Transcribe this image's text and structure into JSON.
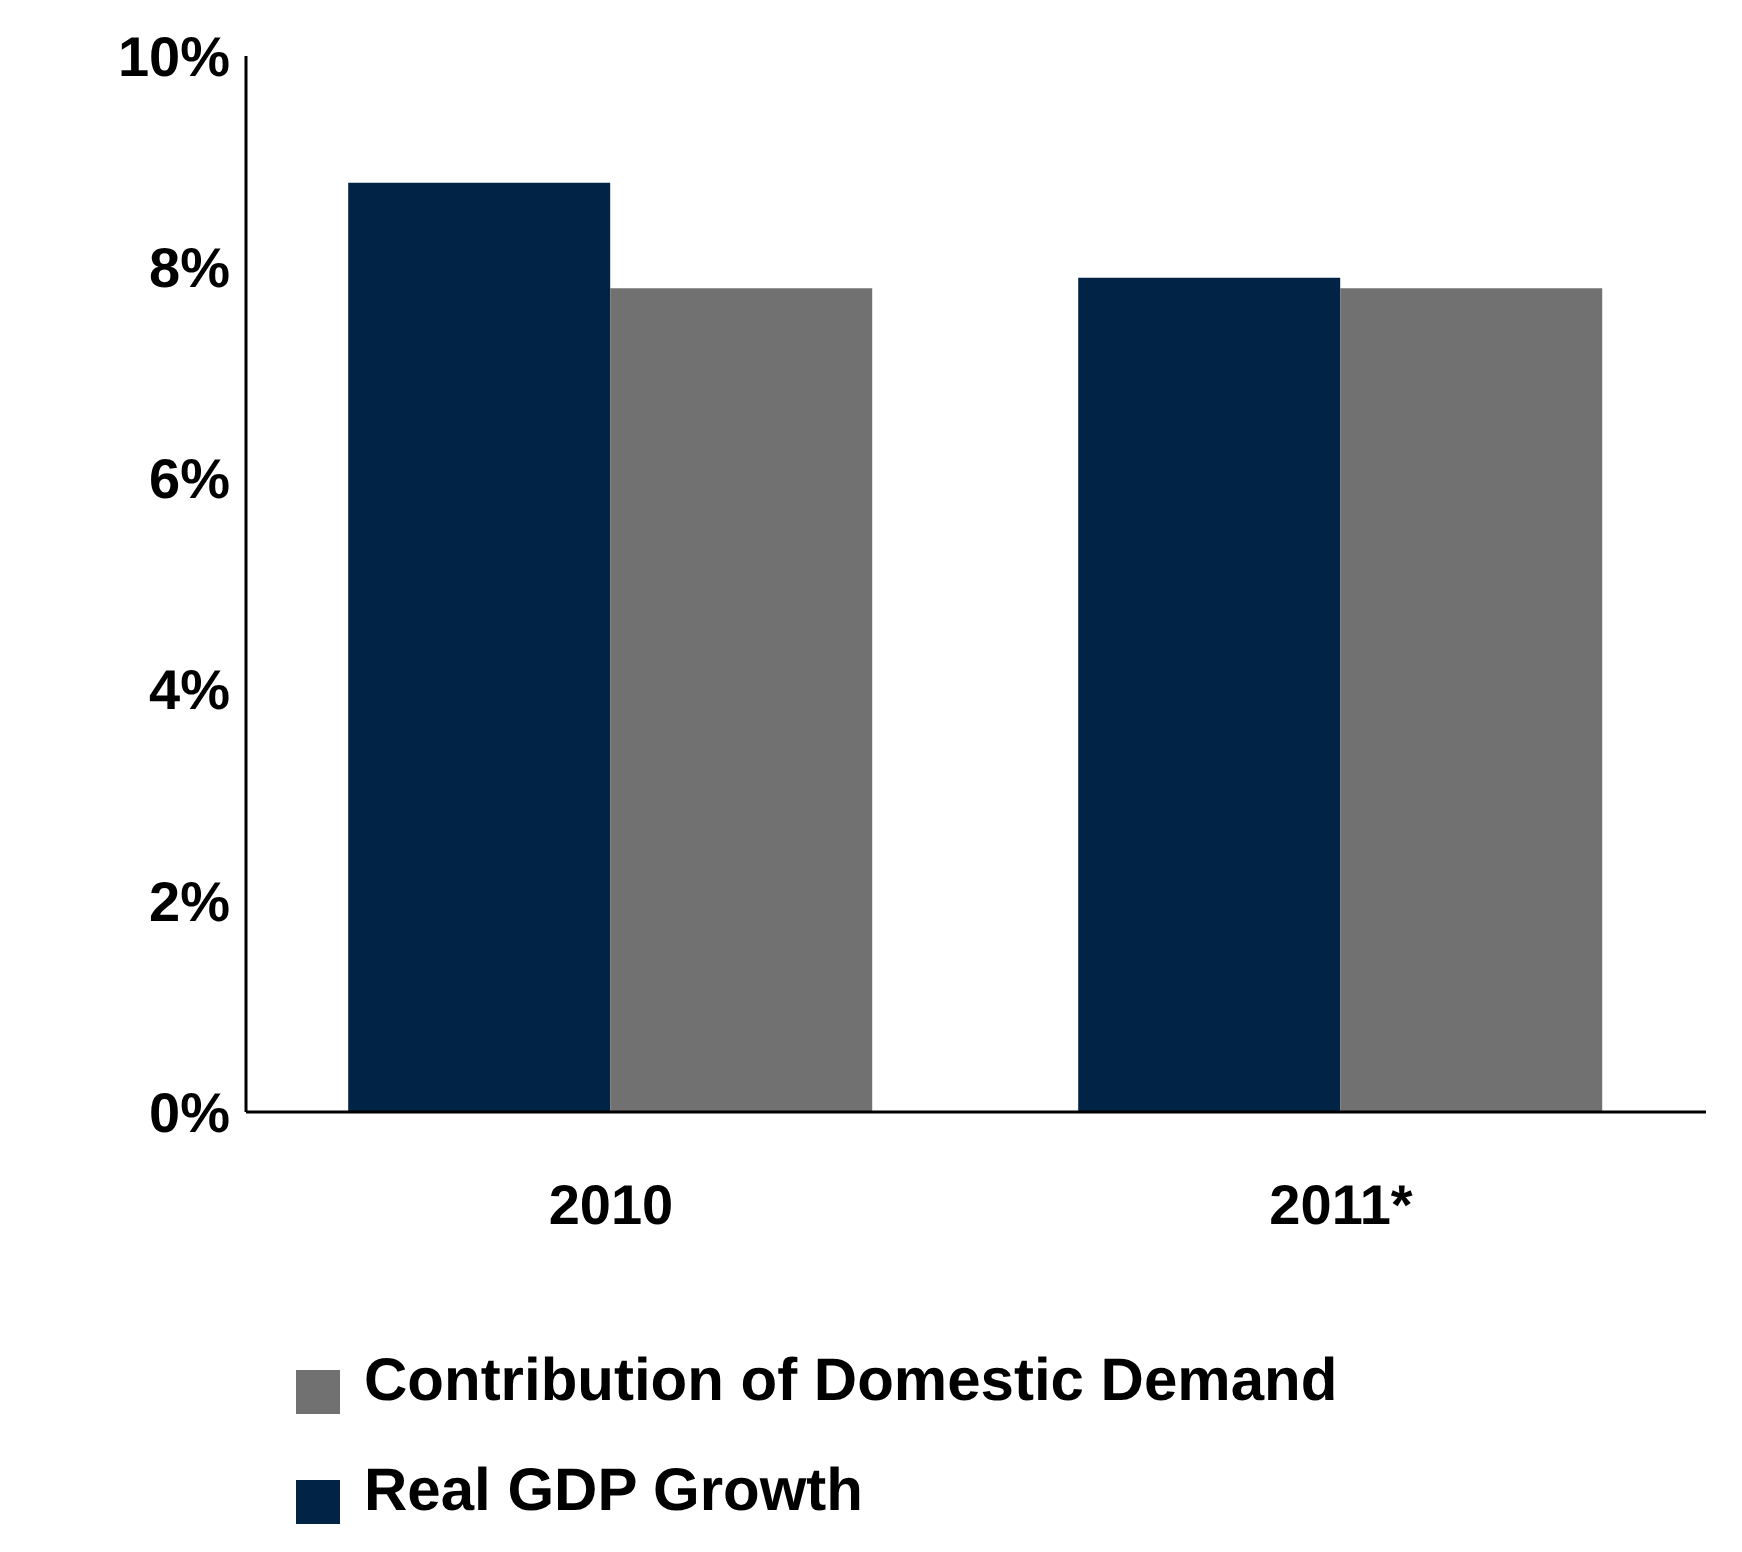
{
  "chart_data": {
    "type": "bar",
    "categories": [
      "2010",
      "2011*"
    ],
    "series": [
      {
        "name": "Real GDP Growth",
        "color": "#012345",
        "values": [
          8.8,
          7.9
        ]
      },
      {
        "name": "Contribution of Domestic Demand",
        "color": "#717171",
        "values": [
          7.8,
          7.8
        ]
      }
    ],
    "ylim": [
      0,
      10
    ],
    "yticks": [
      {
        "value": 0,
        "label": "0%"
      },
      {
        "value": 2,
        "label": "2%"
      },
      {
        "value": 4,
        "label": "4%"
      },
      {
        "value": 6,
        "label": "6%"
      },
      {
        "value": 8,
        "label": "8%"
      },
      {
        "value": 10,
        "label": "10%"
      }
    ],
    "grid": false,
    "legend": "bottom"
  }
}
